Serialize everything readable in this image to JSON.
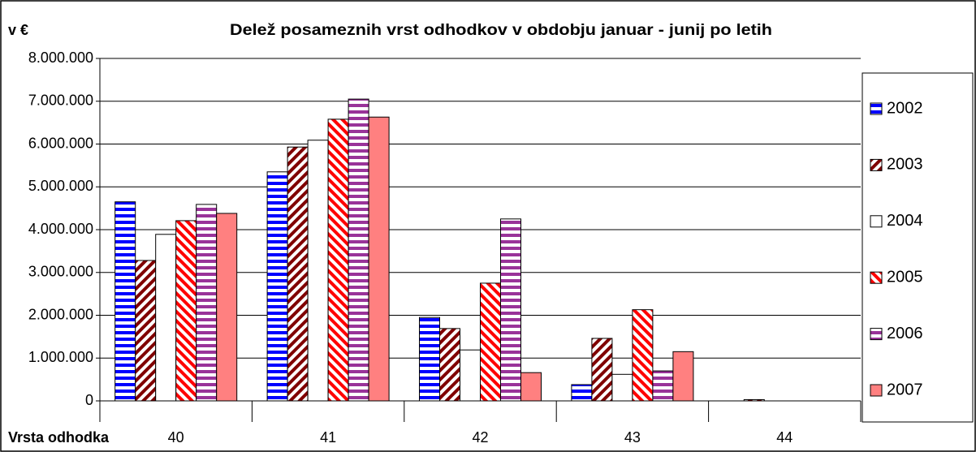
{
  "chart_data": {
    "type": "bar",
    "title": "Delež posameznih vrst odhodkov v obdobju januar - junij po letih",
    "y_label": "v €",
    "x_label": "Vrsta odhodka",
    "categories": [
      "40",
      "41",
      "42",
      "43",
      "44"
    ],
    "series": [
      {
        "name": "2002",
        "color": "#0000ff",
        "pattern": "horizontal",
        "values": [
          4650000,
          5350000,
          1950000,
          380000,
          0
        ]
      },
      {
        "name": "2003",
        "color": "#800000",
        "pattern": "diagonal-up",
        "values": [
          3280000,
          5930000,
          1690000,
          1460000,
          30000
        ]
      },
      {
        "name": "2004",
        "color": "#ffffff",
        "pattern": "solid",
        "values": [
          3890000,
          6090000,
          1190000,
          620000,
          0
        ]
      },
      {
        "name": "2005",
        "color": "#ff0000",
        "pattern": "diagonal-down",
        "values": [
          4210000,
          6580000,
          2750000,
          2130000,
          0
        ]
      },
      {
        "name": "2006",
        "color": "#993399",
        "pattern": "horizontal",
        "values": [
          4590000,
          7050000,
          4250000,
          700000,
          0
        ]
      },
      {
        "name": "2007",
        "color": "#ff8080",
        "pattern": "solid",
        "values": [
          4380000,
          6630000,
          660000,
          1150000,
          0
        ]
      }
    ],
    "ylim": [
      0,
      8000000
    ],
    "yticks": [
      0,
      {
        "value": 1000000,
        "label": "1.000.000"
      },
      {
        "value": 2000000,
        "label": "2.000.000"
      },
      {
        "value": 3000000,
        "label": "3.000.000"
      },
      {
        "value": 4000000,
        "label": "4.000.000"
      },
      {
        "value": 5000000,
        "label": "5.000.000"
      },
      {
        "value": 6000000,
        "label": "6.000.000"
      },
      {
        "value": 7000000,
        "label": "7.000.000"
      },
      {
        "value": 8000000,
        "label": "8.000.000"
      }
    ],
    "grid": true,
    "legend": "right"
  }
}
